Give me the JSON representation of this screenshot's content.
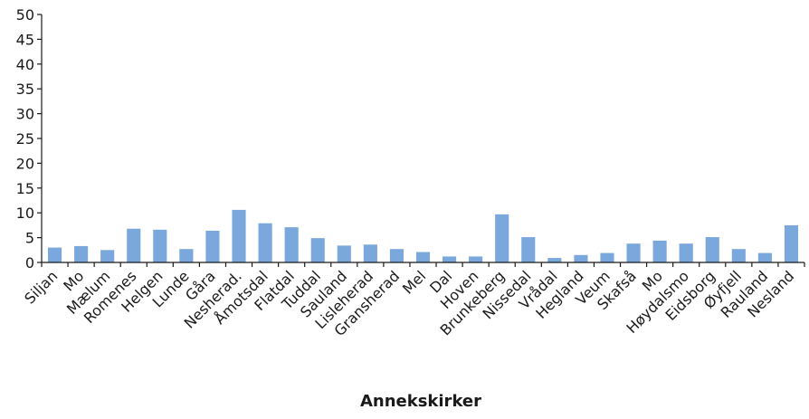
{
  "chart_data": {
    "type": "bar",
    "title": "",
    "xlabel": "Annekskirker",
    "ylabel": "",
    "ylim": [
      0,
      50
    ],
    "yticks": [
      0,
      5,
      10,
      15,
      20,
      25,
      30,
      35,
      40,
      45,
      50
    ],
    "grid": false,
    "bar_color": "#7aa7dc",
    "categories": [
      "Siljan",
      "Mo",
      "Mælum",
      "Romenes",
      "Helgen",
      "Lunde",
      "Gåra",
      "Nesherad.",
      "Åmotsdal",
      "Flatdal",
      "Tuddal",
      "Sauland",
      "Lisleherad",
      "Gransherad",
      "Mel",
      "Dal",
      "Hoven",
      "Brunkeberg",
      "Nissedal",
      "Vrådal",
      "Hegland",
      "Veum",
      "Skafså",
      "Mo",
      "Høydalsmo",
      "Eidsborg",
      "Øyfjell",
      "Rauland",
      "Nesland"
    ],
    "values": [
      3.0,
      3.3,
      2.5,
      6.8,
      6.6,
      2.7,
      6.4,
      10.6,
      7.9,
      7.1,
      4.9,
      3.4,
      3.6,
      2.7,
      2.1,
      1.2,
      1.2,
      9.7,
      5.1,
      0.9,
      1.5,
      1.9,
      3.8,
      4.4,
      3.8,
      5.1,
      2.7,
      1.9,
      7.5
    ]
  }
}
